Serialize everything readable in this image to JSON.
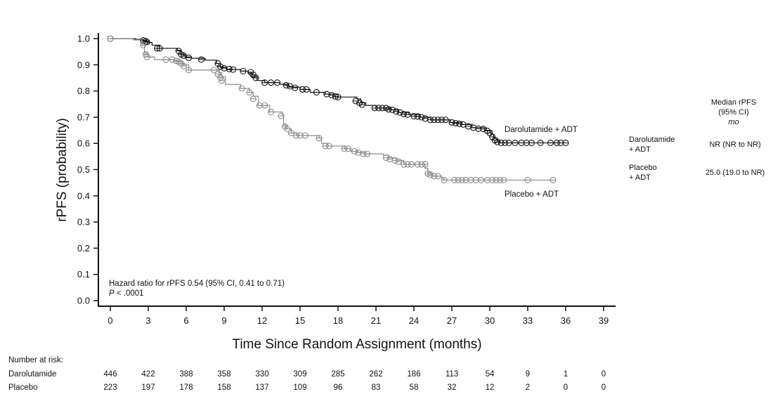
{
  "chart_data": {
    "type": "line",
    "subtype": "kaplan-meier",
    "title": "",
    "xlabel": "Time Since Random Assignment (months)",
    "ylabel": "rPFS (probability)",
    "xlim": [
      0,
      39
    ],
    "ylim": [
      0,
      1.0
    ],
    "xticks": [
      0,
      3,
      6,
      9,
      12,
      15,
      18,
      21,
      24,
      27,
      30,
      33,
      36,
      39
    ],
    "yticks": [
      0.0,
      0.1,
      0.2,
      0.3,
      0.4,
      0.5,
      0.6,
      0.7,
      0.8,
      0.9,
      1.0
    ],
    "xtick_labels": [
      "0",
      "3",
      "6",
      "9",
      "12",
      "15",
      "18",
      "21",
      "24",
      "27",
      "30",
      "33",
      "36",
      "39"
    ],
    "ytick_labels": [
      "0.0",
      "0.1",
      "0.2",
      "0.3",
      "0.4",
      "0.5",
      "0.6",
      "0.7",
      "0.8",
      "0.9",
      "1.0"
    ],
    "grid": false,
    "series": [
      {
        "name": "Darolutamide + ADT",
        "color": "#111111",
        "steps": [
          [
            0,
            1.0
          ],
          [
            2.0,
            0.997
          ],
          [
            2.6,
            0.993
          ],
          [
            2.9,
            0.985
          ],
          [
            3.3,
            0.975
          ],
          [
            3.9,
            0.963
          ],
          [
            5.3,
            0.955
          ],
          [
            5.6,
            0.94
          ],
          [
            5.9,
            0.93
          ],
          [
            6.4,
            0.925
          ],
          [
            7.5,
            0.918
          ],
          [
            8.4,
            0.905
          ],
          [
            8.7,
            0.89
          ],
          [
            9.2,
            0.882
          ],
          [
            10.3,
            0.876
          ],
          [
            10.9,
            0.868
          ],
          [
            11.2,
            0.855
          ],
          [
            11.6,
            0.84
          ],
          [
            12.2,
            0.832
          ],
          [
            13.4,
            0.826
          ],
          [
            14.1,
            0.815
          ],
          [
            15.0,
            0.806
          ],
          [
            15.8,
            0.795
          ],
          [
            17.0,
            0.788
          ],
          [
            18.0,
            0.777
          ],
          [
            19.5,
            0.77
          ],
          [
            19.8,
            0.755
          ],
          [
            20.2,
            0.745
          ],
          [
            21.0,
            0.735
          ],
          [
            22.2,
            0.728
          ],
          [
            22.8,
            0.718
          ],
          [
            23.6,
            0.71
          ],
          [
            24.5,
            0.7
          ],
          [
            25.3,
            0.69
          ],
          [
            26.9,
            0.68
          ],
          [
            27.8,
            0.672
          ],
          [
            28.6,
            0.66
          ],
          [
            29.6,
            0.65
          ],
          [
            30.1,
            0.635
          ],
          [
            30.3,
            0.62
          ],
          [
            30.6,
            0.61
          ],
          [
            30.8,
            0.602
          ],
          [
            36.0,
            0.602
          ]
        ],
        "censored": [
          [
            0,
            1.0
          ],
          [
            2.6,
            0.993
          ],
          [
            2.8,
            0.99
          ],
          [
            2.9,
            0.987
          ],
          [
            3.7,
            0.963
          ],
          [
            3.9,
            0.963
          ],
          [
            5.4,
            0.953
          ],
          [
            5.6,
            0.94
          ],
          [
            5.8,
            0.935
          ],
          [
            6.2,
            0.927
          ],
          [
            7.2,
            0.92
          ],
          [
            8.5,
            0.905
          ],
          [
            8.7,
            0.893
          ],
          [
            9.0,
            0.887
          ],
          [
            9.4,
            0.884
          ],
          [
            9.7,
            0.882
          ],
          [
            10.5,
            0.876
          ],
          [
            11.1,
            0.872
          ],
          [
            11.3,
            0.862
          ],
          [
            11.5,
            0.85
          ],
          [
            12.2,
            0.832
          ],
          [
            12.7,
            0.832
          ],
          [
            13.2,
            0.832
          ],
          [
            13.9,
            0.822
          ],
          [
            14.2,
            0.818
          ],
          [
            14.6,
            0.812
          ],
          [
            15.2,
            0.806
          ],
          [
            15.5,
            0.806
          ],
          [
            16.3,
            0.795
          ],
          [
            17.1,
            0.788
          ],
          [
            17.5,
            0.784
          ],
          [
            17.8,
            0.779
          ],
          [
            18.0,
            0.777
          ],
          [
            19.4,
            0.762
          ],
          [
            19.7,
            0.755
          ],
          [
            19.9,
            0.748
          ],
          [
            20.9,
            0.735
          ],
          [
            21.2,
            0.735
          ],
          [
            21.5,
            0.735
          ],
          [
            21.8,
            0.735
          ],
          [
            22.0,
            0.73
          ],
          [
            22.3,
            0.728
          ],
          [
            22.6,
            0.722
          ],
          [
            22.9,
            0.718
          ],
          [
            23.2,
            0.712
          ],
          [
            23.5,
            0.71
          ],
          [
            24.0,
            0.704
          ],
          [
            24.3,
            0.703
          ],
          [
            24.6,
            0.7
          ],
          [
            24.9,
            0.695
          ],
          [
            25.3,
            0.69
          ],
          [
            25.6,
            0.69
          ],
          [
            25.9,
            0.69
          ],
          [
            26.2,
            0.69
          ],
          [
            26.5,
            0.69
          ],
          [
            27.0,
            0.68
          ],
          [
            27.3,
            0.677
          ],
          [
            27.6,
            0.675
          ],
          [
            27.9,
            0.672
          ],
          [
            28.3,
            0.665
          ],
          [
            28.7,
            0.66
          ],
          [
            29.1,
            0.656
          ],
          [
            29.5,
            0.655
          ],
          [
            29.8,
            0.648
          ],
          [
            30.0,
            0.64
          ],
          [
            30.2,
            0.625
          ],
          [
            30.4,
            0.612
          ],
          [
            30.6,
            0.605
          ],
          [
            30.9,
            0.602
          ],
          [
            31.2,
            0.602
          ],
          [
            31.5,
            0.602
          ],
          [
            32.0,
            0.602
          ],
          [
            32.5,
            0.602
          ],
          [
            32.9,
            0.602
          ],
          [
            33.3,
            0.602
          ],
          [
            34.0,
            0.602
          ],
          [
            34.8,
            0.602
          ],
          [
            35.3,
            0.602
          ],
          [
            35.6,
            0.602
          ],
          [
            36.0,
            0.602
          ]
        ]
      },
      {
        "name": "Placebo + ADT",
        "color": "#8a8a8a",
        "steps": [
          [
            0,
            1.0
          ],
          [
            1.8,
            0.995
          ],
          [
            2.5,
            0.975
          ],
          [
            2.7,
            0.945
          ],
          [
            2.9,
            0.93
          ],
          [
            3.5,
            0.92
          ],
          [
            5.1,
            0.915
          ],
          [
            5.7,
            0.9
          ],
          [
            6.2,
            0.88
          ],
          [
            8.4,
            0.88
          ],
          [
            8.6,
            0.87
          ],
          [
            8.8,
            0.855
          ],
          [
            9.1,
            0.825
          ],
          [
            10.3,
            0.81
          ],
          [
            11.0,
            0.795
          ],
          [
            11.3,
            0.78
          ],
          [
            11.7,
            0.745
          ],
          [
            12.6,
            0.72
          ],
          [
            13.6,
            0.705
          ],
          [
            13.7,
            0.67
          ],
          [
            13.9,
            0.655
          ],
          [
            14.3,
            0.64
          ],
          [
            14.7,
            0.63
          ],
          [
            15.4,
            0.63
          ],
          [
            16.5,
            0.62
          ],
          [
            16.7,
            0.6
          ],
          [
            17.2,
            0.59
          ],
          [
            18.5,
            0.58
          ],
          [
            19.0,
            0.57
          ],
          [
            19.6,
            0.565
          ],
          [
            20.2,
            0.56
          ],
          [
            21.6,
            0.555
          ],
          [
            22.0,
            0.545
          ],
          [
            22.6,
            0.535
          ],
          [
            23.2,
            0.52
          ],
          [
            24.9,
            0.505
          ],
          [
            25.1,
            0.49
          ],
          [
            25.4,
            0.475
          ],
          [
            26.2,
            0.465
          ],
          [
            26.4,
            0.46
          ],
          [
            35.0,
            0.46
          ]
        ],
        "censored": [
          [
            0,
            1.0
          ],
          [
            2.6,
            0.975
          ],
          [
            2.8,
            0.94
          ],
          [
            2.9,
            0.93
          ],
          [
            4.4,
            0.92
          ],
          [
            4.9,
            0.92
          ],
          [
            5.2,
            0.915
          ],
          [
            5.4,
            0.912
          ],
          [
            5.6,
            0.905
          ],
          [
            5.8,
            0.895
          ],
          [
            6.2,
            0.88
          ],
          [
            8.2,
            0.88
          ],
          [
            8.5,
            0.865
          ],
          [
            8.7,
            0.852
          ],
          [
            8.8,
            0.84
          ],
          [
            10.4,
            0.81
          ],
          [
            11.0,
            0.795
          ],
          [
            11.3,
            0.77
          ],
          [
            11.8,
            0.745
          ],
          [
            12.2,
            0.745
          ],
          [
            12.7,
            0.72
          ],
          [
            13.5,
            0.705
          ],
          [
            13.8,
            0.665
          ],
          [
            14.0,
            0.655
          ],
          [
            14.3,
            0.64
          ],
          [
            14.7,
            0.63
          ],
          [
            15.0,
            0.63
          ],
          [
            15.4,
            0.63
          ],
          [
            16.5,
            0.62
          ],
          [
            17.0,
            0.59
          ],
          [
            17.3,
            0.59
          ],
          [
            18.5,
            0.58
          ],
          [
            18.8,
            0.58
          ],
          [
            19.3,
            0.57
          ],
          [
            19.6,
            0.565
          ],
          [
            20.0,
            0.56
          ],
          [
            20.3,
            0.56
          ],
          [
            21.8,
            0.545
          ],
          [
            22.1,
            0.54
          ],
          [
            22.5,
            0.535
          ],
          [
            22.8,
            0.53
          ],
          [
            23.2,
            0.52
          ],
          [
            23.5,
            0.52
          ],
          [
            23.8,
            0.52
          ],
          [
            24.3,
            0.52
          ],
          [
            24.6,
            0.52
          ],
          [
            24.9,
            0.52
          ],
          [
            25.1,
            0.485
          ],
          [
            25.3,
            0.48
          ],
          [
            25.6,
            0.475
          ],
          [
            25.9,
            0.475
          ],
          [
            26.4,
            0.46
          ],
          [
            27.2,
            0.46
          ],
          [
            27.5,
            0.46
          ],
          [
            27.8,
            0.46
          ],
          [
            28.1,
            0.46
          ],
          [
            28.5,
            0.46
          ],
          [
            28.9,
            0.46
          ],
          [
            29.3,
            0.46
          ],
          [
            29.8,
            0.46
          ],
          [
            30.2,
            0.46
          ],
          [
            30.5,
            0.46
          ],
          [
            30.8,
            0.46
          ],
          [
            31.1,
            0.46
          ],
          [
            33.0,
            0.46
          ],
          [
            35.0,
            0.46
          ]
        ]
      }
    ],
    "curve_labels": [
      "Darolutamide + ADT",
      "Placebo + ADT"
    ],
    "annotations": {
      "hazard_ratio": "Hazard ratio for rPFS 0.54 (95% CI, 0.41 to 0.71)",
      "p_prefix": "P",
      "p_value": " < .0001"
    },
    "median_table": {
      "header": [
        "Median rPFS",
        "(95% CI)",
        "mo"
      ],
      "rows": [
        {
          "arm": [
            "Darolutamide",
            "+ ADT"
          ],
          "value": "NR (NR to NR)"
        },
        {
          "arm": [
            "Placebo",
            "+ ADT"
          ],
          "value": "25.0 (19.0 to NR)"
        }
      ]
    },
    "risk_table": {
      "title": "Number at risk:",
      "times": [
        0,
        3,
        6,
        9,
        12,
        15,
        18,
        21,
        24,
        27,
        30,
        33,
        36,
        39
      ],
      "rows": [
        {
          "label": "Darolutamide",
          "values": [
            446,
            422,
            388,
            358,
            330,
            309,
            285,
            262,
            186,
            113,
            54,
            9,
            1,
            0
          ]
        },
        {
          "label": "Placebo",
          "values": [
            223,
            197,
            178,
            158,
            137,
            109,
            96,
            83,
            58,
            32,
            12,
            2,
            0,
            0
          ]
        }
      ]
    }
  }
}
